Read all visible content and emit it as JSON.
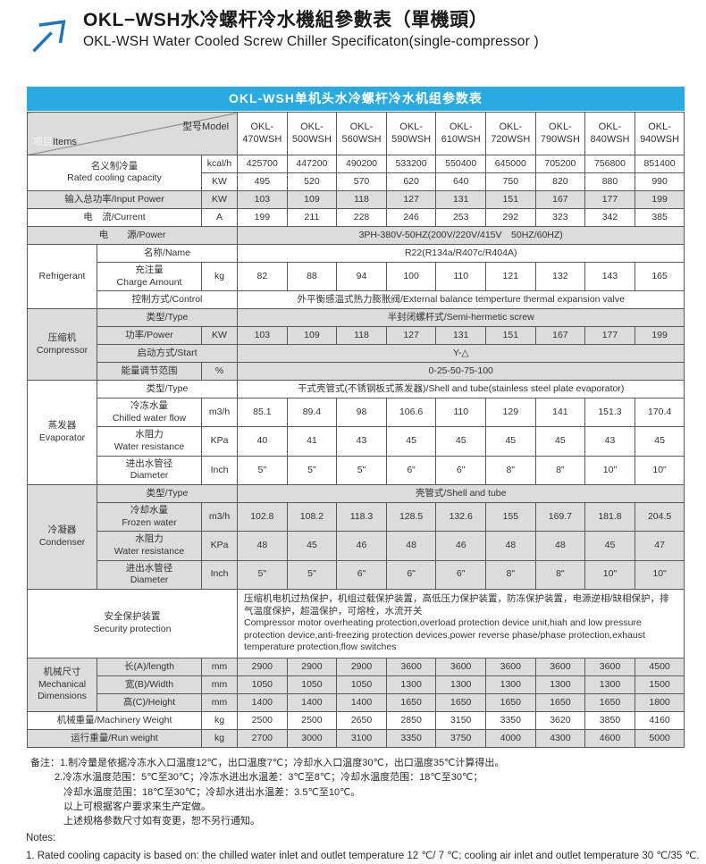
{
  "header": {
    "title_zh": "OKL−WSH水冷螺杆冷水機組參數表（單機頭）",
    "title_en": "OKL-WSH Water Cooled Screw Chiller Specificaton(single-compressor )",
    "logo_icon": "arrow-up-right-icon"
  },
  "banner": {
    "text": "OKL-WSH单机头水冷螺杆冷水机组参数表"
  },
  "colors": {
    "banner_blue": "#29abe2",
    "logo_blue": "#1b75bc",
    "shade_gray": "#dcdcdc",
    "border_gray": "#595959"
  },
  "table": {
    "corner": {
      "items_zh": "项目",
      "items_en": "Items",
      "model_label": "型号Model"
    },
    "models": [
      "OKL-\n470WSH",
      "OKL-\n500WSH",
      "OKL-\n560WSH",
      "OKL-\n590WSH",
      "OKL-\n610WSH",
      "OKL-\n720WSH",
      "OKL-\n790WSH",
      "OKL-\n840WSH",
      "OKL-\n940WSH"
    ],
    "rows": [
      {
        "id": "capacity-kcal",
        "shade": false,
        "left": {
          "type": "head2",
          "label": "名义制冷量\nRated cooling capacity",
          "rowspan": 2
        },
        "unit": "kcal/h",
        "values": [
          "425700",
          "447200",
          "490200",
          "533200",
          "550400",
          "645000",
          "705200",
          "756800",
          "851400"
        ]
      },
      {
        "id": "capacity-kw",
        "shade": false,
        "unit": "KW",
        "values": [
          "495",
          "520",
          "570",
          "620",
          "640",
          "750",
          "820",
          "880",
          "990"
        ]
      },
      {
        "id": "input-power",
        "shade": true,
        "left": {
          "type": "wide",
          "label": "输入总功率/Input Power"
        },
        "unit": "KW",
        "values": [
          "103",
          "109",
          "118",
          "127",
          "131",
          "151",
          "167",
          "177",
          "199"
        ]
      },
      {
        "id": "current",
        "shade": false,
        "left": {
          "type": "wide",
          "label": "电　流/Current"
        },
        "unit": "A",
        "values": [
          "199",
          "211",
          "228",
          "246",
          "253",
          "292",
          "323",
          "342",
          "385"
        ]
      },
      {
        "id": "power-supply",
        "shade": true,
        "left": {
          "type": "full",
          "label": "电　　源/Power"
        },
        "merged": "3PH-380V-50HZ(200V/220V/415V　50HZ/60HZ)"
      },
      {
        "id": "refrigerant-name",
        "shade": false,
        "group": {
          "label": "Refrigerant",
          "rowspan": 3
        },
        "left": {
          "type": "labelunit",
          "label": "名称/Name"
        },
        "merged": "R22(R134a/R407c/R404A)"
      },
      {
        "id": "refrigerant-charge",
        "shade": false,
        "left": {
          "type": "label",
          "label": "充注量\nCharge Amount"
        },
        "unit": "kg",
        "values": [
          "82",
          "88",
          "94",
          "100",
          "110",
          "121",
          "132",
          "143",
          "165"
        ]
      },
      {
        "id": "refrigerant-control",
        "shade": false,
        "left": {
          "type": "labelunit",
          "label": "控制方式/Control"
        },
        "merged": "外平衡感温式热力膨胀阀/External balance temperture thermal expansion valve"
      },
      {
        "id": "compressor-type",
        "shade": true,
        "group": {
          "label": "压缩机\nCompressor",
          "rowspan": 4
        },
        "left": {
          "type": "labelunit",
          "label": "类型/Type"
        },
        "merged": "半封闭螺杆式/Semi-hermetic screw"
      },
      {
        "id": "compressor-power",
        "shade": true,
        "left": {
          "type": "label",
          "label": "功率/Power"
        },
        "unit": "KW",
        "values": [
          "103",
          "109",
          "118",
          "127",
          "131",
          "151",
          "167",
          "177",
          "199"
        ]
      },
      {
        "id": "compressor-start",
        "shade": true,
        "left": {
          "type": "labelunit",
          "label": "启动方式/Start"
        },
        "merged": "Y-△"
      },
      {
        "id": "compressor-energy-range",
        "shade": true,
        "left": {
          "type": "label",
          "label": "能量调节范围"
        },
        "unit": "%",
        "merged": "0-25-50-75-100"
      },
      {
        "id": "evaporator-type",
        "shade": false,
        "group": {
          "label": "蒸发器\nEvaporator",
          "rowspan": 4
        },
        "left": {
          "type": "labelunit",
          "label": "类型/Type"
        },
        "merged": "干式壳管式(不锈钢板式蒸发器)/Shell and tube(stainless steel plate evaporator)"
      },
      {
        "id": "evaporator-flow",
        "shade": false,
        "left": {
          "type": "label",
          "label": "冷冻水量\nChilled water flow"
        },
        "unit": "m3/h",
        "values": [
          "85.1",
          "89.4",
          "98",
          "106.6",
          "110",
          "129",
          "141",
          "151.3",
          "170.4"
        ]
      },
      {
        "id": "evaporator-resistance",
        "shade": false,
        "left": {
          "type": "label",
          "label": "水阻力\nWater resistance"
        },
        "unit": "KPa",
        "values": [
          "40",
          "41",
          "43",
          "45",
          "45",
          "45",
          "45",
          "43",
          "45"
        ]
      },
      {
        "id": "evaporator-diameter",
        "shade": false,
        "left": {
          "type": "label",
          "label": "进出水管径\nDiameter"
        },
        "unit": "Inch",
        "values": [
          "5\"",
          "5\"",
          "5\"",
          "6\"",
          "6\"",
          "8\"",
          "8\"",
          "10\"",
          "10\""
        ]
      },
      {
        "id": "condenser-type",
        "shade": true,
        "group": {
          "label": "冷凝器\nCondenser",
          "rowspan": 4
        },
        "left": {
          "type": "labelunit",
          "label": "类型/Type"
        },
        "merged": "壳管式/Shell and tube"
      },
      {
        "id": "condenser-flow",
        "shade": true,
        "left": {
          "type": "label",
          "label": "冷却水量\nFrozen water"
        },
        "unit": "m3/h",
        "values": [
          "102.8",
          "108.2",
          "118.3",
          "128.5",
          "132.6",
          "155",
          "169.7",
          "181.8",
          "204.5"
        ]
      },
      {
        "id": "condenser-resistance",
        "shade": true,
        "left": {
          "type": "label",
          "label": "水阻力\nWater resistance"
        },
        "unit": "KPa",
        "values": [
          "48",
          "45",
          "46",
          "48",
          "46",
          "48",
          "48",
          "45",
          "47"
        ]
      },
      {
        "id": "condenser-diameter",
        "shade": true,
        "left": {
          "type": "label",
          "label": "进出水管径\nDiameter"
        },
        "unit": "Inch",
        "values": [
          "5\"",
          "5\"",
          "6\"",
          "6\"",
          "6\"",
          "8\"",
          "8\"",
          "10\"",
          "10\""
        ]
      },
      {
        "id": "security-protection",
        "shade": false,
        "left": {
          "type": "full",
          "label": "安全保护装置\nSecurity protection"
        },
        "merged": "压缩机电机过热保护，机组过载保护装置，高低压力保护装置，防冻保护装置，电源逆相/缺相保护，排气温度保护，超温保护，可熔栓，水流开关\nCompressor motor overheating protection,overload protection device unit,hiah and low pressure protection device,anti-freezing protection devices,power reverse phase/phase protection,exhaust temperature protection,flow switches",
        "mergedAlign": "left"
      },
      {
        "id": "dimension-length",
        "shade": true,
        "group": {
          "label": "机械尺寸\nMechanical\nDimensions",
          "rowspan": 3
        },
        "left": {
          "type": "label",
          "label": "长(A)/length"
        },
        "unit": "mm",
        "values": [
          "2900",
          "2900",
          "2900",
          "3600",
          "3600",
          "3600",
          "3600",
          "3600",
          "4500"
        ]
      },
      {
        "id": "dimension-width",
        "shade": true,
        "left": {
          "type": "label",
          "label": "宽(B)/Width"
        },
        "unit": "mm",
        "values": [
          "1050",
          "1050",
          "1050",
          "1300",
          "1300",
          "1300",
          "1300",
          "1300",
          "1500"
        ]
      },
      {
        "id": "dimension-height",
        "shade": true,
        "left": {
          "type": "label",
          "label": "高(C)/Height"
        },
        "unit": "mm",
        "values": [
          "1400",
          "1400",
          "1400",
          "1650",
          "1650",
          "1650",
          "1650",
          "1650",
          "1800"
        ]
      },
      {
        "id": "machinery-weight",
        "shade": false,
        "left": {
          "type": "wide",
          "label": "机械重量/Machinery Weight"
        },
        "unit": "kg",
        "values": [
          "2500",
          "2500",
          "2650",
          "2850",
          "3150",
          "3350",
          "3620",
          "3850",
          "4160"
        ]
      },
      {
        "id": "run-weight",
        "shade": true,
        "left": {
          "type": "wide",
          "label": "运行重量/Run weight"
        },
        "unit": "kg",
        "values": [
          "2700",
          "3000",
          "3100",
          "3350",
          "3750",
          "4000",
          "4300",
          "4600",
          "5000"
        ]
      }
    ]
  },
  "notes": {
    "zh": [
      "备注：1.制冷量是依据冷冻水入口温度12℃，出口温度7℃；冷却水入口温度30℃，出口温度35℃计算得出。",
      "2.冷冻水温度范围：5℃至30℃；冷冻水进出水温差：3℃至8℃；冷却水温度范围：18℃至30℃；",
      "冷却水温度范围：18℃至30℃；冷却水进出水温差：3.5℃至10℃。",
      "以上可根据客户要求来生产定做。",
      "上述规格参数尺寸如有变更，恕不另行通知。"
    ],
    "en_title": "Notes:",
    "en": "1. Rated cooling capacity is based on: the chilled water inlet and outlet temperature 12 ℃/ 7 ℃; cooling air inlet and outlet temperature 30 ℃/35 ℃."
  }
}
